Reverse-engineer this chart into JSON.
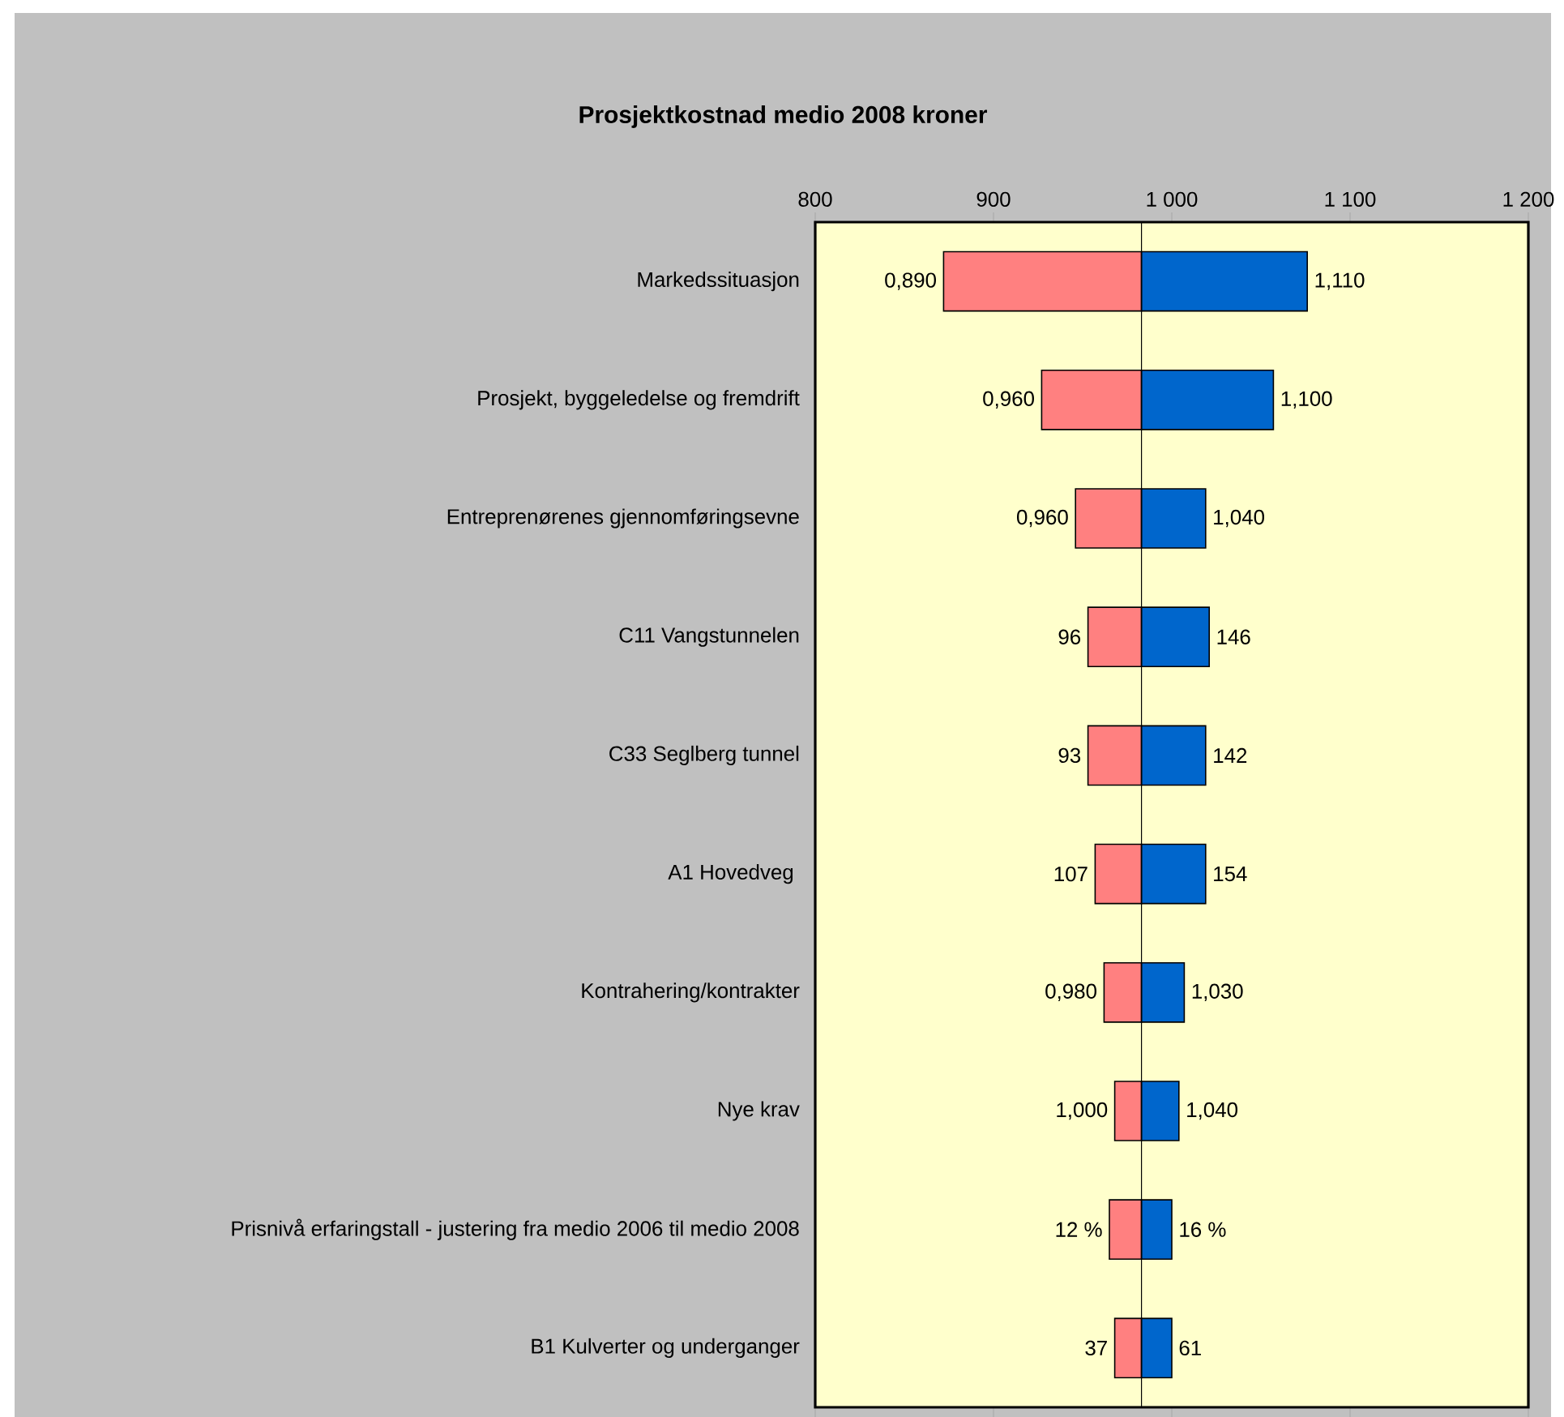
{
  "chart_data": {
    "type": "bar",
    "orientation": "horizontal",
    "title": "Prosjektkostnad medio 2008 kroner",
    "categories": [
      "Markedssituasjon",
      "Prosjekt, byggeledelse og fremdrift",
      "Entreprenørenes gjennomføringsevne",
      "C11 Vangstunnelen",
      "C33 Seglberg tunnel",
      "A1 Hovedveg ",
      "Kontrahering/kontrakter",
      "Nye krav",
      "Prisnivå erfaringstall - justering fra medio 2006 til medio 2008",
      "B1 Kulverter og underganger"
    ],
    "series": [
      {
        "color": "#ff8080",
        "base": [
          872,
          927,
          946,
          953,
          953,
          957,
          962,
          968,
          965,
          968
        ],
        "values": [
          111,
          56,
          37,
          30,
          30,
          26,
          21,
          15,
          18,
          15
        ]
      },
      {
        "color": "#0066cc",
        "base": [
          983,
          983,
          983,
          983,
          983,
          983,
          983,
          983,
          983,
          983
        ],
        "values": [
          93,
          74,
          36,
          38,
          36,
          36,
          24,
          21,
          17,
          17
        ]
      }
    ],
    "annotations": [
      {
        "text": "0,890",
        "x": 872,
        "y": "Markedssituasjon"
      },
      {
        "text": "1,110",
        "x": 1076,
        "y": "Markedssituasjon"
      },
      {
        "text": "0,960",
        "x": 927,
        "y": "Prosjekt, byggeledelse og fremdrift"
      },
      {
        "text": "1,100",
        "x": 1057,
        "y": "Prosjekt, byggeledelse og fremdrift"
      },
      {
        "text": "0,960",
        "x": 946,
        "y": "Entreprenørenes gjennomføringsevne"
      },
      {
        "text": "1,040",
        "x": 1019,
        "y": "Entreprenørenes gjennomføringsevne"
      },
      {
        "text": "96",
        "x": 953,
        "y": "C11 Vangstunnelen"
      },
      {
        "text": "146",
        "x": 1021,
        "y": "C11 Vangstunnelen"
      },
      {
        "text": "93",
        "x": 953,
        "y": "C33 Seglberg tunnel"
      },
      {
        "text": "142",
        "x": 1019,
        "y": "C33 Seglberg tunnel"
      },
      {
        "text": "107",
        "x": 957,
        "y": "A1 Hovedveg "
      },
      {
        "text": "154",
        "x": 1019,
        "y": "A1 Hovedveg "
      },
      {
        "text": "0,980",
        "x": 962,
        "y": "Kontrahering/kontrakter"
      },
      {
        "text": "1,030",
        "x": 1007,
        "y": "Kontrahering/kontrakter"
      },
      {
        "text": "1,000",
        "x": 968,
        "y": "Nye krav"
      },
      {
        "text": "1,040",
        "x": 1004,
        "y": "Nye krav"
      },
      {
        "text": "12 %",
        "x": 965,
        "y": "Prisnivå erfaringstall - justering fra medio 2006 til medio 2008"
      },
      {
        "text": "16 %",
        "x": 1000,
        "y": "Prisnivå erfaringstall - justering fra medio 2006 til medio 2008"
      },
      {
        "text": "37",
        "x": 968,
        "y": "B1 Kulverter og underganger"
      },
      {
        "text": "61",
        "x": 1000,
        "y": "B1 Kulverter og underganger"
      }
    ],
    "xlim": [
      800,
      1200
    ],
    "xticks": [
      800,
      900,
      {
        "value": 1000,
        "label": "1 000"
      },
      {
        "value": 1100,
        "label": "1 100"
      },
      {
        "value": 1200,
        "label": "1 200"
      }
    ],
    "ref_lines": [
      {
        "axis": "x",
        "value": 983,
        "color": "#000000"
      }
    ],
    "grid": false
  }
}
